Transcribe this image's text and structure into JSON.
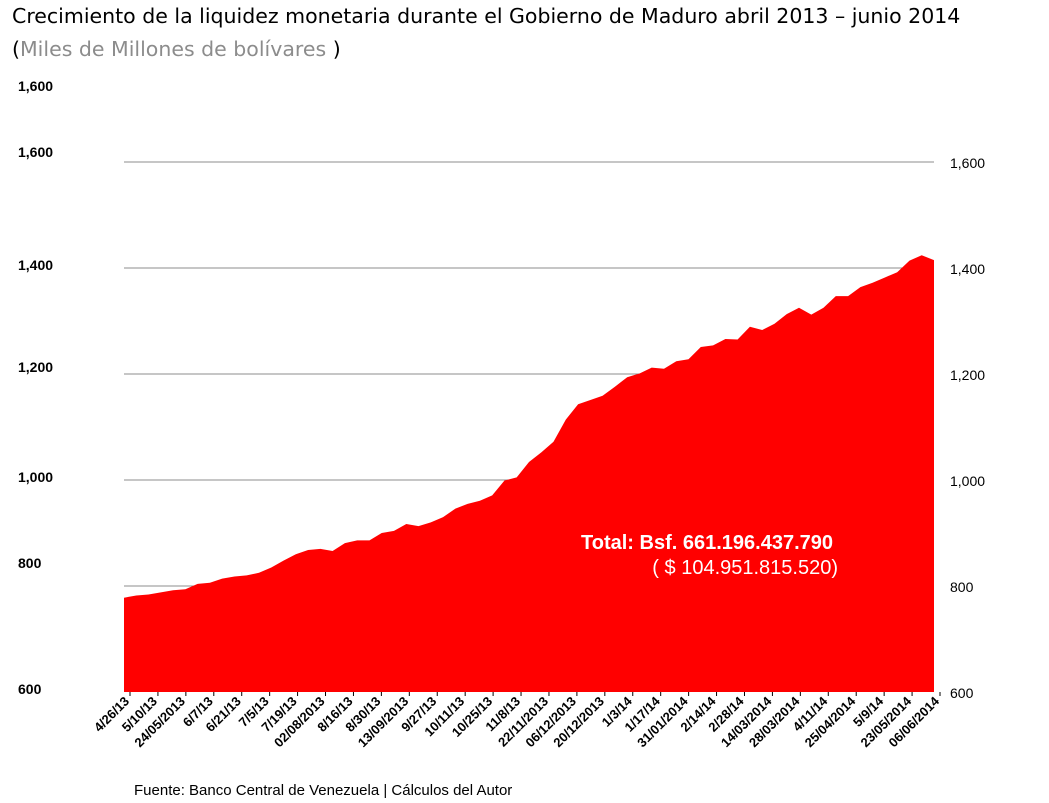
{
  "title": {
    "main": "Crecimiento de la liquidez monetaria durante el Gobierno de Maduro",
    "period": "abril 2013 – junio 2014",
    "subtitle_open": "(",
    "subtitle_units": "Miles de Millones de bolívares ",
    "subtitle_close": ")"
  },
  "source": "Fuente: Banco Central de Venezuela |    Cálculos del Autor",
  "colors": {
    "area": "#ff0000",
    "grid": "#8c8c8c",
    "text": "#000000",
    "annotation": "#ffffff"
  },
  "chart_data": {
    "type": "area",
    "title": "Crecimiento de la liquidez monetaria durante el Gobierno de Maduro abril 2013 – junio 2014",
    "ylabel": "Miles de Millones de bolívares",
    "ylim": [
      600,
      1600
    ],
    "grid": true,
    "right_axis_ticks": [
      "600",
      "800",
      "1,000",
      "1,200",
      "1,400",
      "1,600"
    ],
    "left_axis_labels": [
      "1,600",
      "1,600",
      "1,400",
      "1,200",
      "1,000",
      "800",
      "600"
    ],
    "x_labels": [
      "4/26/13",
      "5/10/13",
      "24/05/2013",
      "6/7/13",
      "6/21/13",
      "7/5/13",
      "7/19/13",
      "02/08/2013",
      "8/16/13",
      "8/30/13",
      "13/09/2013",
      "9/27/13",
      "10/11/13",
      "10/25/13",
      "11/8/13",
      "22/11/2013",
      "06/12/2013",
      "20/12/2013",
      "1/3/14",
      "1/17/14",
      "31/01/2014",
      "2/14/14",
      "2/28/14",
      "14/03/2014",
      "28/03/2014",
      "4/11/14",
      "25/04/2014",
      "5/9/14",
      "23/05/2014",
      "06/06/2014"
    ],
    "values": [
      778,
      782,
      784,
      788,
      792,
      794,
      804,
      806,
      814,
      818,
      820,
      825,
      835,
      848,
      860,
      868,
      870,
      866,
      881,
      886,
      886,
      900,
      904,
      917,
      913,
      920,
      930,
      946,
      955,
      961,
      971,
      999,
      1005,
      1034,
      1052,
      1072,
      1114,
      1143,
      1151,
      1159,
      1176,
      1194,
      1201,
      1212,
      1210,
      1224,
      1228,
      1251,
      1254,
      1266,
      1265,
      1289,
      1283,
      1295,
      1313,
      1325,
      1312,
      1325,
      1347,
      1347,
      1364,
      1372,
      1382,
      1392,
      1414,
      1424,
      1415
    ],
    "annotation": {
      "line1": "Total: Bsf. 661.196.437.790",
      "line2": "( $ 104.951.815.520)"
    }
  }
}
